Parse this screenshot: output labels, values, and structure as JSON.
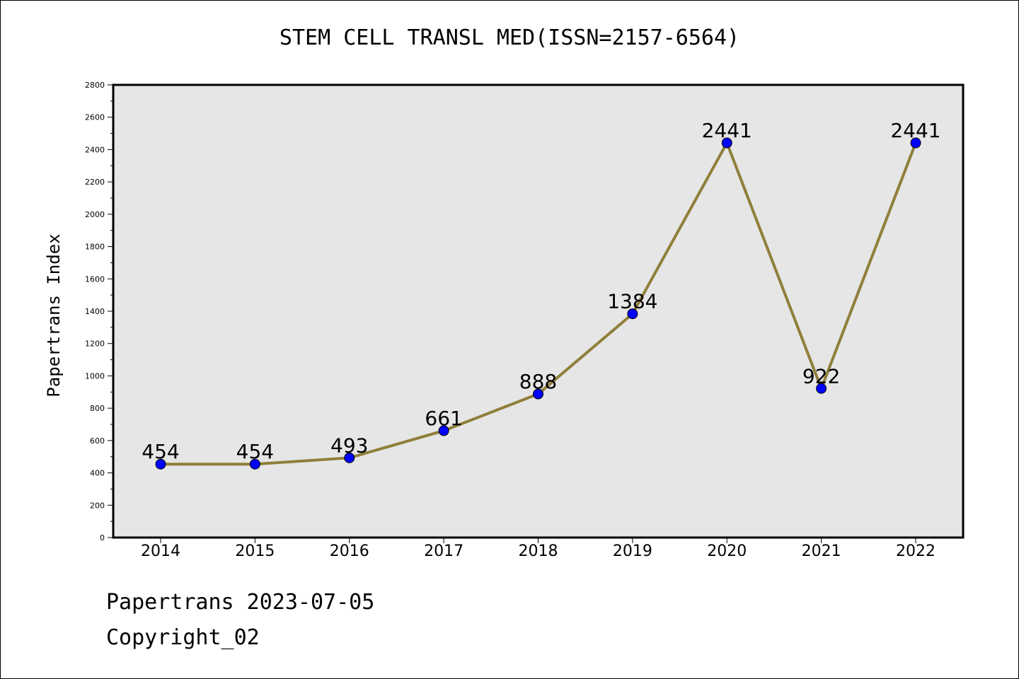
{
  "chart_data": {
    "type": "line",
    "title": "STEM CELL TRANSL MED(ISSN=2157-6564)",
    "xlabel": "",
    "ylabel": "Papertrans Index",
    "categories": [
      "2014",
      "2015",
      "2016",
      "2017",
      "2018",
      "2019",
      "2020",
      "2021",
      "2022"
    ],
    "series": [
      {
        "values": [
          454,
          454,
          493,
          661,
          888,
          1384,
          2441,
          922,
          2441
        ]
      }
    ],
    "data_labels": [
      "454",
      "454",
      "493",
      "661",
      "888",
      "1384",
      "2441",
      "922",
      "2441"
    ],
    "ylim": [
      0,
      2800
    ],
    "yticks": [
      "0",
      "200",
      "400",
      "600",
      "800",
      "1000",
      "1200",
      "1400",
      "1600",
      "1800",
      "2000",
      "2200",
      "2400",
      "2600",
      "2800"
    ],
    "grid": false,
    "colors": {
      "line": "#8f7f3a",
      "marker": "#0000ff",
      "plot_background": "#e6e6e6"
    }
  },
  "footer": {
    "date_text": "Papertrans 2023-07-05",
    "copyright_text": "Copyright_02"
  }
}
